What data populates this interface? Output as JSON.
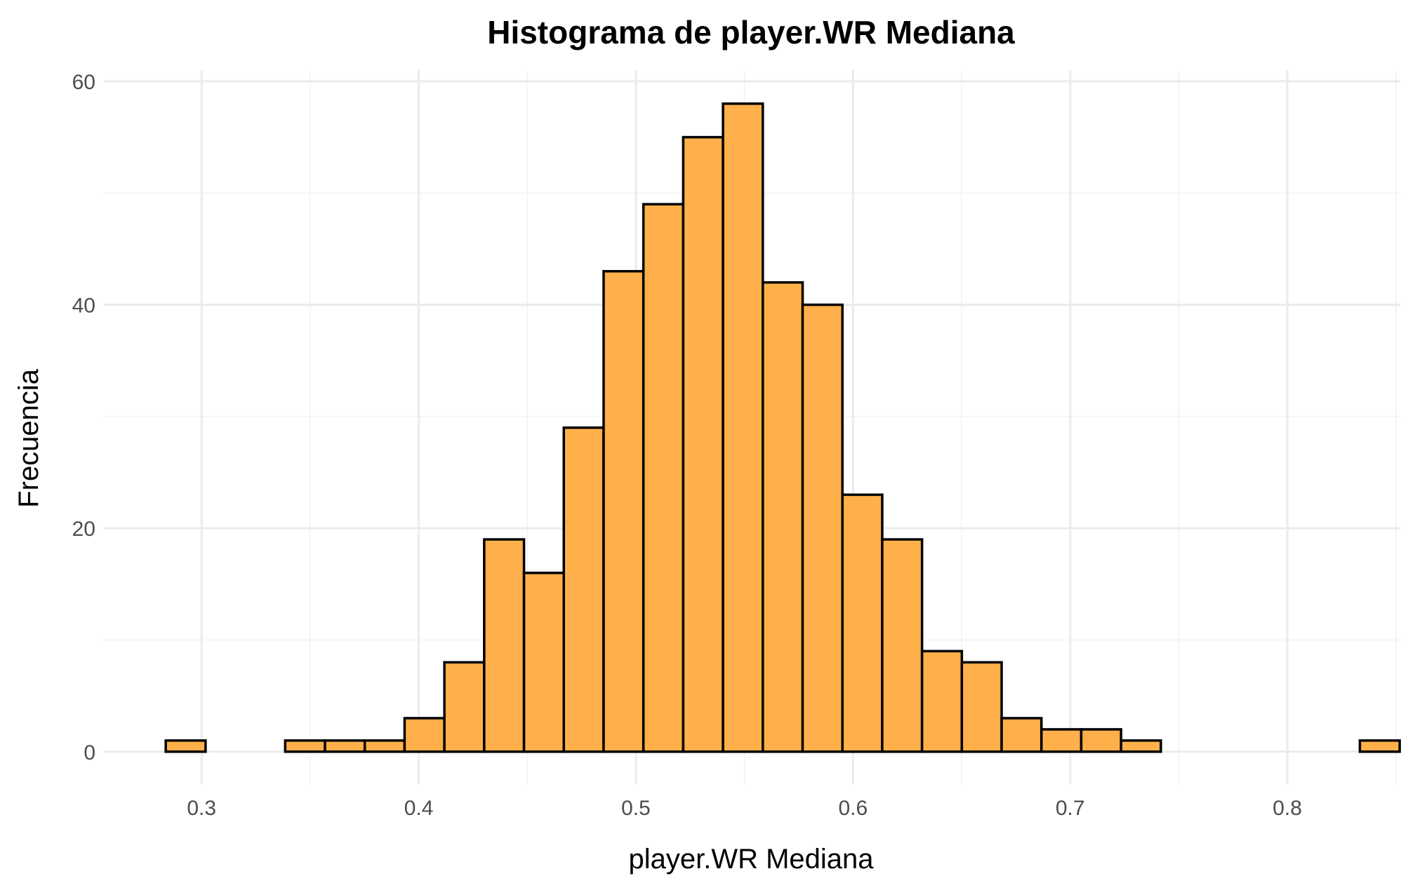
{
  "chart_data": {
    "type": "bar",
    "title": "Histograma de player.WR Mediana",
    "xlabel": "player.WR Mediana",
    "ylabel": "Frecuencia",
    "bar_color": "#FFB04A",
    "edge_color": "#000000",
    "bin_start": 0.2835,
    "bin_width": 0.01833,
    "values": [
      1,
      0,
      0,
      1,
      1,
      1,
      3,
      8,
      19,
      16,
      29,
      43,
      49,
      55,
      58,
      42,
      40,
      23,
      19,
      9,
      8,
      3,
      2,
      2,
      1,
      0,
      0,
      0,
      0,
      0,
      1
    ],
    "xlim": [
      0.255,
      0.852
    ],
    "ylim": [
      -2.9,
      61
    ],
    "x_ticks": [
      0.3,
      0.4,
      0.5,
      0.6,
      0.7,
      0.8
    ],
    "x_tick_labels": [
      "0.3",
      "0.4",
      "0.5",
      "0.6",
      "0.7",
      "0.8"
    ],
    "y_ticks": [
      0,
      20,
      40,
      60
    ],
    "y_tick_labels": [
      "0",
      "20",
      "40",
      "60"
    ],
    "grid": true,
    "legend": "none"
  }
}
